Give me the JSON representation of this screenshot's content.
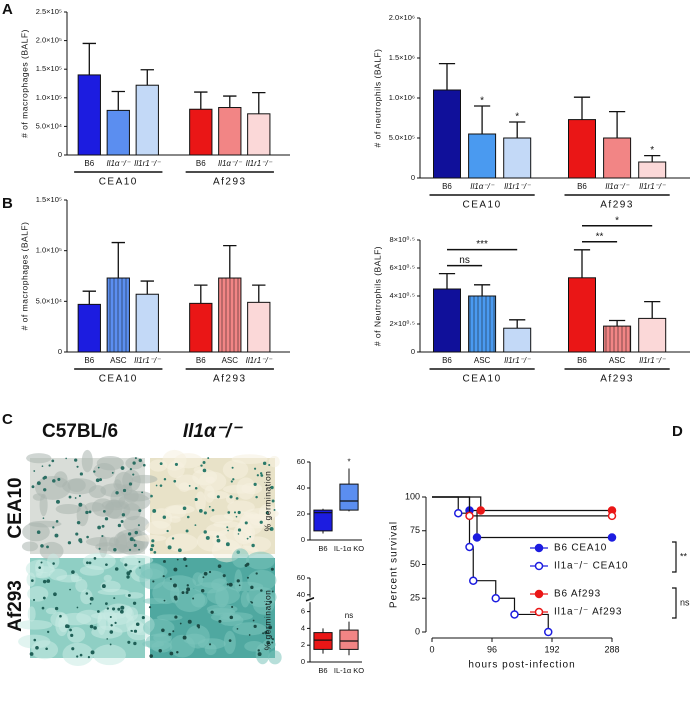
{
  "panel_labels": [
    "A",
    "B",
    "C",
    "D"
  ],
  "image_panel": {
    "columns": [
      "C57BL/6",
      "Il1α⁻/⁻"
    ],
    "rows": [
      "CEA10",
      "Af293"
    ]
  },
  "chart_data": [
    {
      "type": "bar",
      "ylabel": "# of macrophages (BALF)",
      "categories": [
        "B6",
        "Il1α⁻/⁻",
        "Il1r1⁻/⁻",
        "B6",
        "Il1α⁻/⁻",
        "Il1r1⁻/⁻"
      ],
      "groups": [
        "CEA10",
        "Af293"
      ],
      "values": [
        140000,
        78000,
        122000,
        80000,
        83000,
        72000
      ],
      "errors": [
        55000,
        33000,
        27000,
        30000,
        20000,
        37000
      ],
      "colors": [
        "#1c1ce0",
        "#5b8ef0",
        "#c3d9f7",
        "#ea1616",
        "#f28585",
        "#fbd8d8"
      ],
      "ylim": [
        0,
        250000
      ],
      "yticks": [
        0,
        {
          "value": 50000,
          "label": "5.0×10⁴"
        },
        {
          "value": 100000,
          "label": "1.0×10⁵"
        },
        {
          "value": 150000,
          "label": "1.5×10⁵"
        },
        {
          "value": 200000,
          "label": "2.0×10⁵"
        },
        {
          "value": 250000,
          "label": "2.5×10⁵"
        }
      ]
    },
    {
      "type": "bar",
      "ylabel": "# of neutrophils  (BALF)",
      "categories": [
        "B6",
        "Il1α⁻/⁻",
        "Il1r1⁻/⁻",
        "B6",
        "Il1α⁻/⁻",
        "Il1r1⁻/⁻"
      ],
      "groups": [
        "CEA10",
        "Af293"
      ],
      "values": [
        1100000,
        550000,
        500000,
        730000,
        500000,
        200000
      ],
      "errors": [
        330000,
        350000,
        200000,
        280000,
        330000,
        80000
      ],
      "colors": [
        "#10109a",
        "#4a9af0",
        "#c3d9f7",
        "#ea1616",
        "#f28585",
        "#fbd8d8"
      ],
      "ylim": [
        0,
        2000000
      ],
      "yticks": [
        0,
        {
          "value": 500000,
          "label": "5.0×10⁵"
        },
        {
          "value": 1000000,
          "label": "1.0×10⁶"
        },
        {
          "value": 1500000,
          "label": "1.5×10⁶"
        },
        {
          "value": 2000000,
          "label": "2.0×10⁶"
        }
      ],
      "annotations": [
        {
          "text": "*",
          "index": 1
        },
        {
          "text": "*",
          "index": 2
        },
        {
          "text": "*",
          "index": 5
        }
      ]
    },
    {
      "type": "bar",
      "ylabel": "# of macrophages (BALF)",
      "categories": [
        "B6",
        "ASC",
        "Il1r1⁻/⁻",
        "B6",
        "ASC",
        "Il1r1⁻/⁻"
      ],
      "groups": [
        "CEA10",
        "Af293"
      ],
      "values": [
        47000,
        73000,
        57000,
        48000,
        73000,
        49000
      ],
      "errors": [
        13000,
        35000,
        13000,
        18000,
        32000,
        17000
      ],
      "colors": [
        "#1c1ce0",
        "#5b8ef0",
        "#c3d9f7",
        "#ea1616",
        "#f28585",
        "#fbd8d8"
      ],
      "hatched": [
        false,
        true,
        false,
        false,
        true,
        false
      ],
      "ylim": [
        0,
        150000
      ],
      "yticks": [
        0,
        {
          "value": 50000,
          "label": "5.0×10⁴"
        },
        {
          "value": 100000,
          "label": "1.0×10⁵"
        },
        {
          "value": 150000,
          "label": "1.5×10⁵"
        }
      ]
    },
    {
      "type": "bar",
      "ylabel": "# of Neutrophils (BALF)",
      "categories": [
        "B6",
        "ASC",
        "Il1r1⁻/⁻",
        "B6",
        "ASC",
        "Il1r1⁻/⁻"
      ],
      "groups": [
        "CEA10",
        "Af293"
      ],
      "values": [
        450000,
        400000,
        170000,
        530000,
        185000,
        240000
      ],
      "errors": [
        110000,
        80000,
        60000,
        200000,
        40000,
        120000
      ],
      "colors": [
        "#10109a",
        "#4a9af0",
        "#c3d9f7",
        "#ea1616",
        "#f28585",
        "#fbd8d8"
      ],
      "hatched": [
        false,
        true,
        false,
        false,
        true,
        false
      ],
      "ylim": [
        0,
        800000
      ],
      "yticks": [
        0,
        {
          "value": 200000,
          "label": "2×10⁰·⁵"
        },
        {
          "value": 400000,
          "label": "4×10⁰·⁵"
        },
        {
          "value": 600000,
          "label": "6×10⁰·⁵"
        },
        {
          "value": 800000,
          "label": "8×10⁰·⁵"
        }
      ],
      "comparisons": [
        {
          "text": "ns",
          "from": 0,
          "to": 1
        },
        {
          "text": "***",
          "from": 0,
          "to": 2
        },
        {
          "text": "**",
          "from": 3,
          "to": 4
        },
        {
          "text": "*",
          "from": 3,
          "to": 5
        }
      ]
    },
    {
      "type": "box",
      "ylabel": "% germination",
      "categories": [
        "B6",
        "IL-1α KO"
      ],
      "min": [
        5,
        22
      ],
      "q1": [
        7,
        23
      ],
      "median": [
        21,
        30
      ],
      "q3": [
        23,
        43
      ],
      "max": [
        24,
        55
      ],
      "colors": [
        "#1c1ce0",
        "#5b8ef0"
      ],
      "ylim": [
        0,
        60
      ],
      "yticks": [
        0,
        20,
        40,
        60
      ],
      "annotations": [
        {
          "text": "*",
          "index": 1
        }
      ]
    },
    {
      "type": "box",
      "ylabel": "% germination",
      "categories": [
        "B6",
        "IL-1α KO"
      ],
      "min": [
        1,
        0.8
      ],
      "q1": [
        1.5,
        1.5
      ],
      "median": [
        2.6,
        2.5
      ],
      "q3": [
        3.5,
        3.8
      ],
      "max": [
        4,
        4.8
      ],
      "colors": [
        "#ea1616",
        "#f28585"
      ],
      "ylim": [
        0,
        60
      ],
      "ybreak": [
        7,
        38
      ],
      "yticks": [
        0,
        2,
        4,
        6,
        40,
        60
      ],
      "annotations": [
        {
          "text": "ns",
          "index": 1
        }
      ]
    },
    {
      "type": "survival",
      "xlabel": "hours post-infection",
      "ylabel": "Percent survival",
      "xlim": [
        0,
        288
      ],
      "xticks": [
        0,
        96,
        192,
        288
      ],
      "ylim": [
        0,
        100
      ],
      "yticks": [
        0,
        25,
        50,
        75,
        100
      ],
      "series": [
        {
          "name": "B6 CEA10",
          "color": "#1c1ce0",
          "filled": true,
          "x": [
            0,
            60,
            72,
            288
          ],
          "values": [
            100,
            90,
            70,
            70
          ]
        },
        {
          "name": "Il1a⁻/⁻ CEA10",
          "color": "#1c1ce0",
          "filled": false,
          "x": [
            0,
            42,
            60,
            66,
            102,
            132,
            186
          ],
          "values": [
            100,
            88,
            63,
            38,
            25,
            13,
            0
          ]
        },
        {
          "name": "B6 Af293",
          "color": "#ea1616",
          "filled": true,
          "x": [
            0,
            78,
            288
          ],
          "values": [
            100,
            90,
            90
          ]
        },
        {
          "name": "Il1a⁻/⁻ Af293",
          "color": "#ea1616",
          "filled": false,
          "x": [
            0,
            60,
            288
          ],
          "values": [
            100,
            86,
            86
          ]
        }
      ],
      "comparisons": [
        {
          "text": "**",
          "from": 0,
          "to": 1
        },
        {
          "text": "ns",
          "from": 2,
          "to": 3
        }
      ]
    }
  ]
}
